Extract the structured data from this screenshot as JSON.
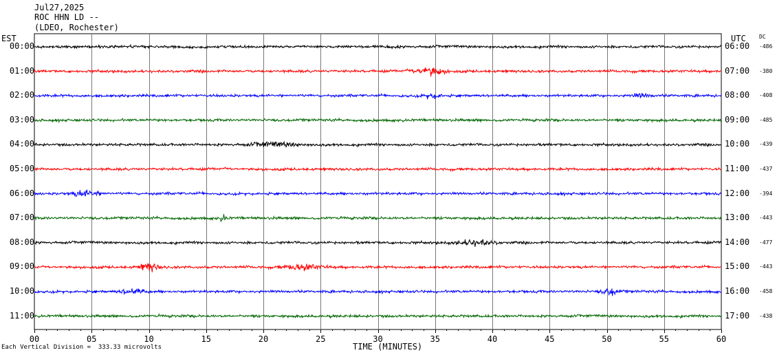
{
  "header": {
    "date": "Jul27,2025",
    "station": "ROC HHN LD --",
    "network": "(LDEO, Rochester)"
  },
  "left_title": "EST",
  "right_title": "UTC",
  "dc_title": "DC",
  "footer_note": "Each Vertical Division =  333.33 microvolts",
  "chart_data": {
    "type": "line",
    "xlabel": "TIME (MINUTES)",
    "xlim": [
      0,
      60
    ],
    "x_ticks": [
      "00",
      "05",
      "10",
      "15",
      "20",
      "25",
      "30",
      "35",
      "40",
      "45",
      "50",
      "55",
      "60"
    ],
    "series": [
      {
        "est": "00:00",
        "utc": "06:00",
        "dc": "-486",
        "color": "#000000"
      },
      {
        "est": "01:00",
        "utc": "07:00",
        "dc": "-380",
        "color": "#ff0000"
      },
      {
        "est": "02:00",
        "utc": "08:00",
        "dc": "-408",
        "color": "#0000ff"
      },
      {
        "est": "03:00",
        "utc": "09:00",
        "dc": "-485",
        "color": "#006600"
      },
      {
        "est": "04:00",
        "utc": "10:00",
        "dc": "-439",
        "color": "#000000"
      },
      {
        "est": "05:00",
        "utc": "11:00",
        "dc": "-437",
        "color": "#ff0000"
      },
      {
        "est": "06:00",
        "utc": "12:00",
        "dc": "-394",
        "color": "#0000ff"
      },
      {
        "est": "07:00",
        "utc": "13:00",
        "dc": "-443",
        "color": "#006600"
      },
      {
        "est": "08:00",
        "utc": "14:00",
        "dc": "-477",
        "color": "#000000"
      },
      {
        "est": "09:00",
        "utc": "15:00",
        "dc": "-443",
        "color": "#ff0000"
      },
      {
        "est": "10:00",
        "utc": "16:00",
        "dc": "-458",
        "color": "#0000ff"
      },
      {
        "est": "11:00",
        "utc": "17:00",
        "dc": "-438",
        "color": "#006600"
      }
    ],
    "events": [
      {
        "row": 1,
        "minute": 34.5,
        "amplitude": 3.5,
        "width": 1.2
      },
      {
        "row": 2,
        "minute": 34.8,
        "amplitude": 1.6,
        "width": 0.8
      },
      {
        "row": 2,
        "minute": 53.0,
        "amplitude": 1.4,
        "width": 0.8
      },
      {
        "row": 4,
        "minute": 21.0,
        "amplitude": 1.6,
        "width": 2.0
      },
      {
        "row": 6,
        "minute": 4.5,
        "amplitude": 2.2,
        "width": 1.2
      },
      {
        "row": 7,
        "minute": 16.5,
        "amplitude": 2.0,
        "width": 0.3
      },
      {
        "row": 8,
        "minute": 38.5,
        "amplitude": 2.0,
        "width": 1.5
      },
      {
        "row": 9,
        "minute": 23.5,
        "amplitude": 2.2,
        "width": 1.5
      },
      {
        "row": 9,
        "minute": 10.0,
        "amplitude": 3.0,
        "width": 0.8
      },
      {
        "row": 10,
        "minute": 8.5,
        "amplitude": 2.2,
        "width": 1.0
      },
      {
        "row": 10,
        "minute": 50.3,
        "amplitude": 2.6,
        "width": 0.7
      }
    ]
  }
}
